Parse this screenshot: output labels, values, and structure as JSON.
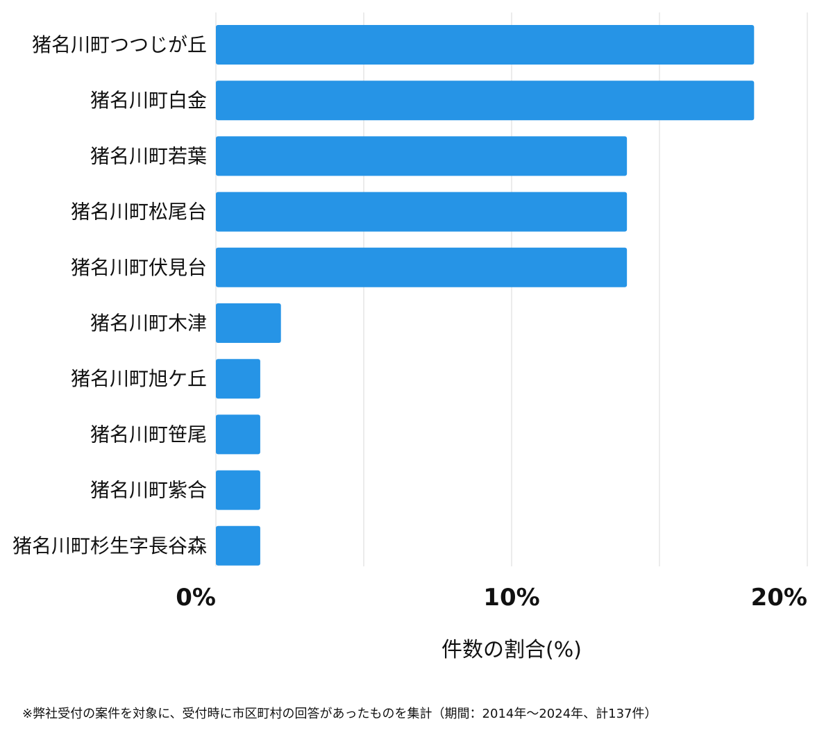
{
  "chart_data": {
    "type": "bar",
    "orientation": "horizontal",
    "categories": [
      "猪名川町つつじが丘",
      "猪名川町白金",
      "猪名川町若葉",
      "猪名川町松尾台",
      "猪名川町伏見台",
      "猪名川町木津",
      "猪名川町旭ケ丘",
      "猪名川町笹尾",
      "猪名川町紫合",
      "猪名川町杉生字長谷森"
    ],
    "values": [
      18.2,
      18.2,
      13.9,
      13.9,
      13.9,
      2.2,
      1.5,
      1.5,
      1.5,
      1.5
    ],
    "xlim": [
      0,
      20
    ],
    "xticks": [
      {
        "value": 0,
        "label": "0%"
      },
      {
        "value": 10,
        "label": "10%"
      },
      {
        "value": 20,
        "label": "20%"
      }
    ],
    "gridlines": [
      0,
      5,
      10,
      15,
      20
    ],
    "xlabel": "件数の割合(%)",
    "bar_color": "#2694e6",
    "grid_color": "#d9d9d9"
  },
  "footnote": "※弊社受付の案件を対象に、受付時に市区町村の回答があったものを集計（期間：2014年～2024年、計137件）"
}
